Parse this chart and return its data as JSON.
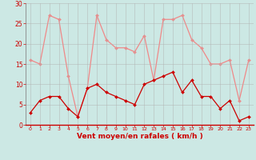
{
  "x": [
    0,
    1,
    2,
    3,
    4,
    5,
    6,
    7,
    8,
    9,
    10,
    11,
    12,
    13,
    14,
    15,
    16,
    17,
    18,
    19,
    20,
    21,
    22,
    23
  ],
  "rafales": [
    16,
    15,
    27,
    26,
    12,
    2,
    9,
    27,
    21,
    19,
    19,
    18,
    22,
    11,
    26,
    26,
    27,
    21,
    19,
    15,
    15,
    16,
    6,
    16
  ],
  "moyen": [
    3,
    6,
    7,
    7,
    4,
    2,
    9,
    10,
    8,
    7,
    6,
    5,
    10,
    11,
    12,
    13,
    8,
    11,
    7,
    7,
    4,
    6,
    1,
    2
  ],
  "bg_color": "#cce8e4",
  "grid_color": "#b0b0b0",
  "line_color_rafales": "#f08888",
  "line_color_moyen": "#cc0000",
  "xlabel": "Vent moyen/en rafales ( km/h )",
  "ylim": [
    0,
    30
  ],
  "xlim": [
    -0.5,
    23.5
  ],
  "yticks": [
    0,
    5,
    10,
    15,
    20,
    25,
    30
  ],
  "xticks": [
    0,
    1,
    2,
    3,
    4,
    5,
    6,
    7,
    8,
    9,
    10,
    11,
    12,
    13,
    14,
    15,
    16,
    17,
    18,
    19,
    20,
    21,
    22,
    23
  ],
  "tick_color": "#cc0000",
  "xlabel_color": "#cc0000",
  "ytick_fontsize": 5.5,
  "xtick_fontsize": 4.5,
  "xlabel_fontsize": 6.5
}
